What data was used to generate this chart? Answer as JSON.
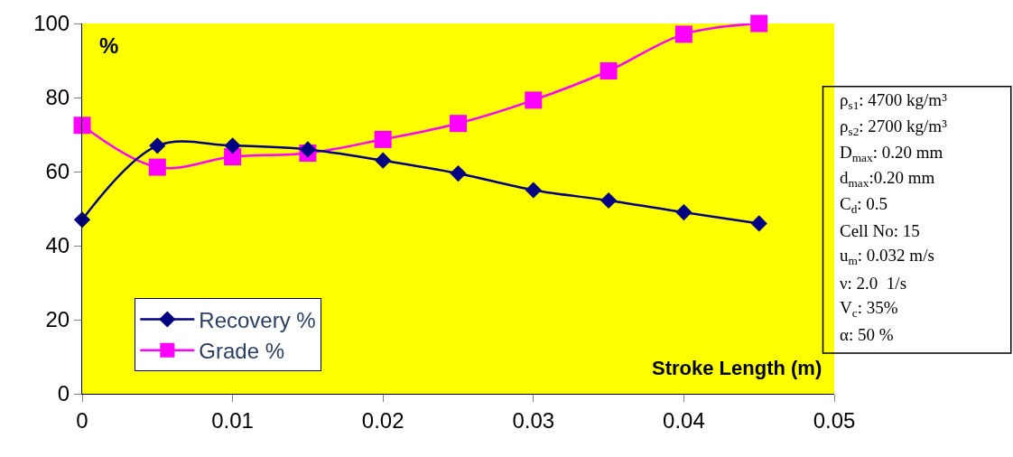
{
  "chart_data": {
    "type": "line",
    "xlabel": "Stroke Length (m)",
    "ylabel": "%",
    "x": [
      0,
      0.005,
      0.01,
      0.015,
      0.02,
      0.025,
      0.03,
      0.035,
      0.04,
      0.045
    ],
    "series": [
      {
        "name": "Recovery %",
        "color": "#000080",
        "marker": "diamond",
        "values": [
          47,
          67,
          67,
          66,
          63,
          59.5,
          55,
          52.2,
          49,
          46
        ]
      },
      {
        "name": "Grade %",
        "color": "#ff00ff",
        "marker": "square",
        "values": [
          72.5,
          61.2,
          64,
          65,
          68.7,
          73,
          79.3,
          87.2,
          97.1,
          100
        ]
      }
    ],
    "xlim": [
      0,
      0.05
    ],
    "xticks": [
      0,
      0.01,
      0.02,
      0.03,
      0.04,
      0.05
    ],
    "ylim": [
      0,
      100
    ],
    "yticks": [
      0,
      20,
      40,
      60,
      80,
      100
    ],
    "grid": false,
    "legend": "bottom left",
    "line_style": "solid",
    "annotations": [
      "ρ$_{s1}$: 4700 kg/m³",
      "ρ$_{s2}$: 2700 kg/m³",
      "D$_{max}$: 0.20 mm",
      "d$_{max}$:0.20 mm",
      "C$_{d}$: 0.5",
      "Cell No: 15",
      "u$_{m}$: 0.032 m/s",
      "ν: 2.0  1/s",
      "V$_{c}$: 35%",
      "α: 50 %"
    ]
  }
}
